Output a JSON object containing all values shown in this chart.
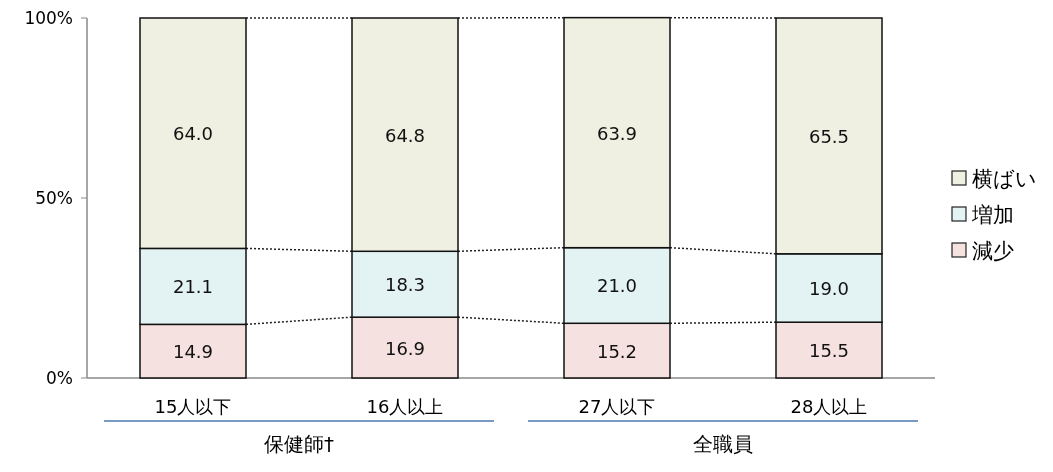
{
  "chart_data": {
    "type": "bar",
    "stacked": true,
    "categories": [
      "15人以下",
      "16人以上",
      "27人以下",
      "28人以上"
    ],
    "series": [
      {
        "name": "減少",
        "color": "#f5e1df",
        "values": [
          14.9,
          16.9,
          15.2,
          15.5
        ],
        "value_labels": [
          "14.9",
          "16.9",
          "15.2",
          "15.5"
        ]
      },
      {
        "name": "増加",
        "color": "#e3f3f3",
        "values": [
          21.1,
          18.3,
          21.0,
          19.0
        ],
        "value_labels": [
          "21.1",
          "18.3",
          "21.0",
          "19.0"
        ]
      },
      {
        "name": "横ばい",
        "color": "#eff0e2",
        "values": [
          64.0,
          64.8,
          63.9,
          65.5
        ],
        "value_labels": [
          "64.0",
          "64.8",
          "63.9",
          "65.5"
        ]
      }
    ],
    "ylim": [
      0,
      100
    ],
    "yticks": [
      {
        "value": 0,
        "label": "0%"
      },
      {
        "value": 50,
        "label": "50%"
      },
      {
        "value": 100,
        "label": "100%"
      }
    ],
    "legend": "right",
    "grid": false,
    "annotations": [
      "保健師†",
      "全職員"
    ]
  }
}
